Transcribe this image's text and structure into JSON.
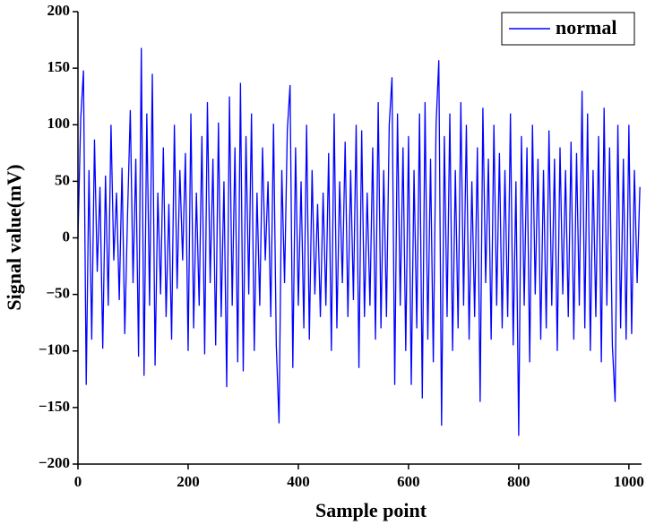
{
  "chart_data": {
    "type": "line",
    "xlabel": "Sample point",
    "ylabel": "Signal value(mV)",
    "x": [
      0,
      5,
      10,
      15,
      20,
      25,
      30,
      35,
      40,
      45,
      50,
      55,
      60,
      65,
      70,
      75,
      80,
      85,
      90,
      95,
      100,
      105,
      110,
      115,
      120,
      125,
      130,
      135,
      140,
      145,
      150,
      155,
      160,
      165,
      170,
      175,
      180,
      185,
      190,
      195,
      200,
      205,
      210,
      215,
      220,
      225,
      230,
      235,
      240,
      245,
      250,
      255,
      260,
      265,
      270,
      275,
      280,
      285,
      290,
      295,
      300,
      305,
      310,
      315,
      320,
      325,
      330,
      335,
      340,
      345,
      350,
      355,
      360,
      365,
      370,
      375,
      380,
      385,
      390,
      395,
      400,
      405,
      410,
      415,
      420,
      425,
      430,
      435,
      440,
      445,
      450,
      455,
      460,
      465,
      470,
      475,
      480,
      485,
      490,
      495,
      500,
      505,
      510,
      515,
      520,
      525,
      530,
      535,
      540,
      545,
      550,
      555,
      560,
      565,
      570,
      575,
      580,
      585,
      590,
      595,
      600,
      605,
      610,
      615,
      620,
      625,
      630,
      635,
      640,
      645,
      650,
      655,
      660,
      665,
      670,
      675,
      680,
      685,
      690,
      695,
      700,
      705,
      710,
      715,
      720,
      725,
      730,
      735,
      740,
      745,
      750,
      755,
      760,
      765,
      770,
      775,
      780,
      785,
      790,
      795,
      800,
      805,
      810,
      815,
      820,
      825,
      830,
      835,
      840,
      845,
      850,
      855,
      860,
      865,
      870,
      875,
      880,
      885,
      890,
      895,
      900,
      905,
      910,
      915,
      920,
      925,
      930,
      935,
      940,
      945,
      950,
      955,
      960,
      965,
      970,
      975,
      980,
      985,
      990,
      995,
      1000,
      1005,
      1010,
      1015,
      1020
    ],
    "series": [
      {
        "name": "normal",
        "color": "#0000ff",
        "values": [
          0,
          105,
          148,
          -130,
          60,
          -90,
          87,
          -30,
          45,
          -98,
          55,
          -60,
          100,
          -20,
          40,
          -55,
          62,
          -85,
          20,
          113,
          -40,
          70,
          -105,
          168,
          -122,
          110,
          -60,
          145,
          -113,
          40,
          -50,
          80,
          -70,
          30,
          -90,
          100,
          -45,
          60,
          -20,
          75,
          -100,
          110,
          -80,
          40,
          -60,
          90,
          -103,
          120,
          -40,
          70,
          -95,
          102,
          -70,
          50,
          -132,
          125,
          -60,
          80,
          -110,
          137,
          -118,
          90,
          -50,
          110,
          -100,
          40,
          -60,
          80,
          -20,
          50,
          -70,
          101,
          -95,
          -164,
          60,
          -40,
          95,
          135,
          -115,
          80,
          -60,
          50,
          -80,
          100,
          -90,
          60,
          -50,
          30,
          -70,
          40,
          -60,
          75,
          -100,
          110,
          -80,
          50,
          -40,
          85,
          -70,
          60,
          -55,
          100,
          -115,
          95,
          -70,
          40,
          -60,
          80,
          -90,
          120,
          -80,
          60,
          -70,
          100,
          142,
          -130,
          110,
          -60,
          80,
          -100,
          90,
          -130,
          60,
          -80,
          110,
          -142,
          120,
          -90,
          70,
          -110,
          100,
          157,
          -166,
          90,
          -70,
          110,
          -100,
          60,
          -80,
          120,
          -60,
          100,
          -90,
          50,
          -70,
          80,
          -145,
          115,
          -40,
          70,
          -90,
          100,
          -60,
          75,
          -80,
          60,
          -70,
          110,
          -95,
          50,
          -175,
          90,
          -60,
          80,
          -110,
          100,
          -50,
          70,
          -90,
          60,
          -80,
          95,
          -60,
          70,
          -100,
          80,
          -50,
          60,
          -70,
          85,
          -90,
          75,
          -60,
          130,
          -80,
          110,
          -100,
          60,
          -70,
          90,
          -110,
          115,
          -60,
          80,
          -95,
          -145,
          100,
          -80,
          70,
          -90,
          100,
          -85,
          60,
          -40,
          45
        ]
      }
    ],
    "xlim": [
      0,
      1023
    ],
    "xticks": [
      0,
      200,
      400,
      600,
      800,
      1000
    ],
    "ylim": [
      -200,
      200
    ],
    "yticks": [
      {
        "value": -200,
        "label": "−200"
      },
      {
        "value": -150,
        "label": "−150"
      },
      {
        "value": -100,
        "label": "−100"
      },
      {
        "value": -50,
        "label": "−50"
      },
      0,
      50,
      100,
      150,
      200
    ],
    "legend": "upper right"
  }
}
